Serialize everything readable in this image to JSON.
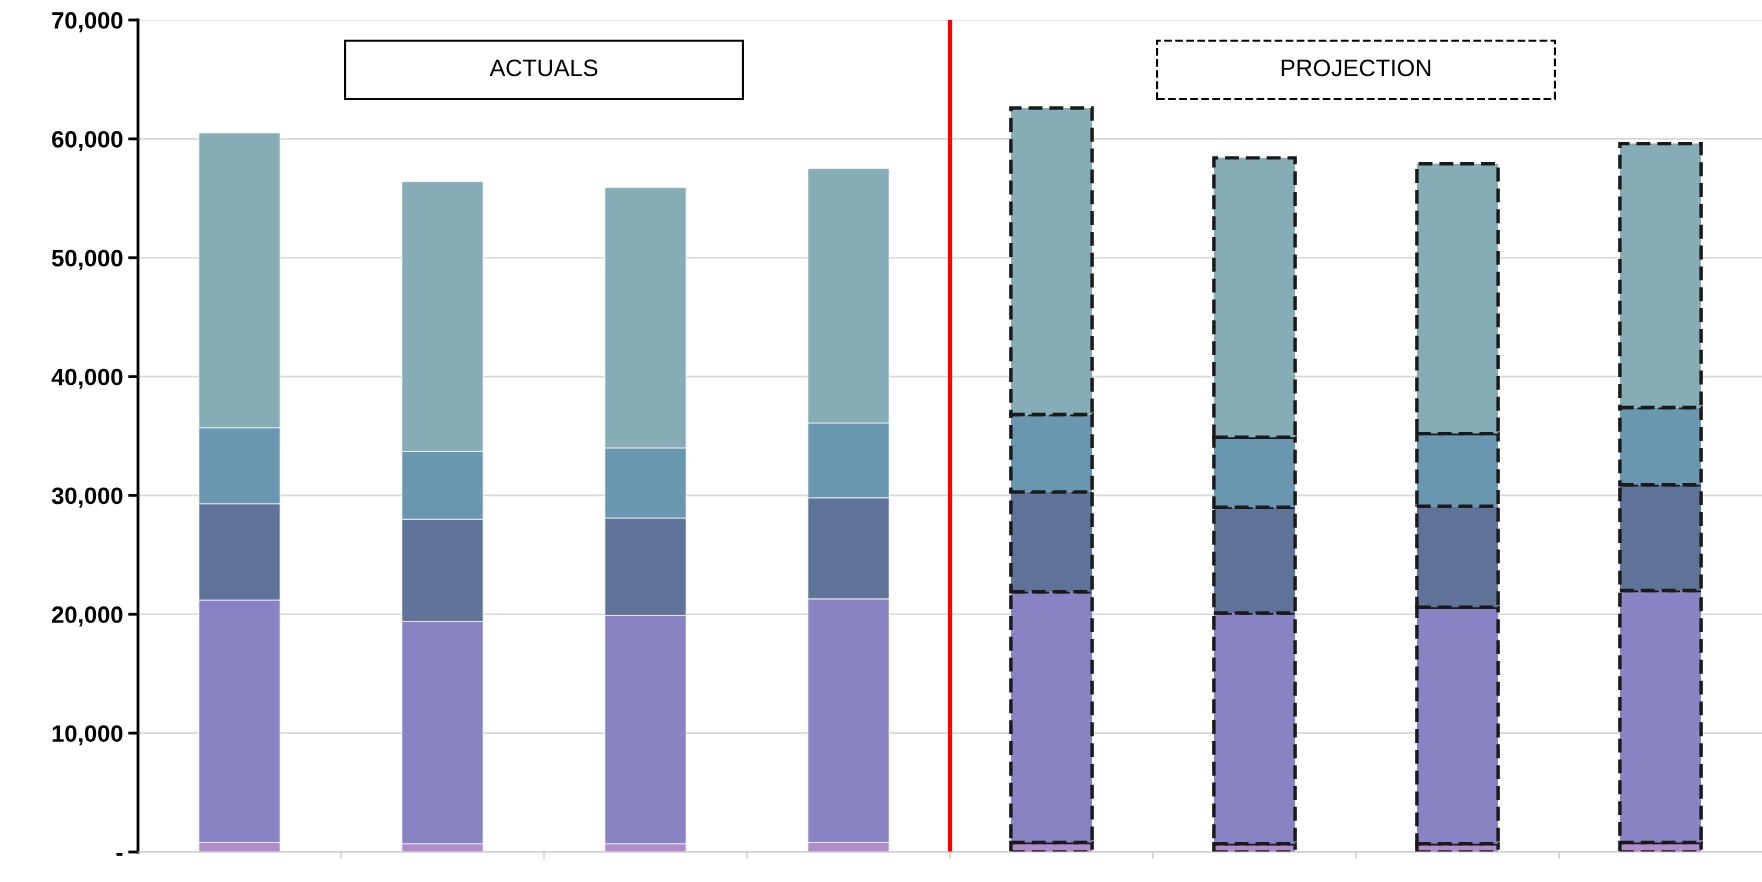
{
  "chart_data": {
    "type": "bar",
    "stacked": true,
    "categories": [
      null,
      null,
      null,
      null,
      null,
      null,
      null,
      null
    ],
    "series": [
      {
        "color": "#b08ccc",
        "values": [
          800,
          700,
          700,
          800,
          800,
          700,
          700,
          800
        ],
        "line_style": [
          null,
          null,
          null,
          null,
          "dashed",
          "dashed",
          "dashed",
          "dashed"
        ]
      },
      {
        "color": "#8884c4",
        "values": [
          20400,
          18700,
          19200,
          20500,
          21100,
          19400,
          19900,
          21200
        ],
        "line_style": [
          null,
          null,
          null,
          null,
          "dashed",
          "dashed",
          "dashed",
          "dashed"
        ]
      },
      {
        "color": "#5f7398",
        "values": [
          8100,
          8600,
          8200,
          8500,
          8400,
          8900,
          8500,
          8900
        ],
        "line_style": [
          null,
          null,
          null,
          null,
          "dashed",
          "dashed",
          "dashed",
          "dashed"
        ]
      },
      {
        "color": "#6a97b0",
        "values": [
          6400,
          5700,
          5900,
          6300,
          6500,
          5900,
          6100,
          6500
        ],
        "line_style": [
          null,
          null,
          null,
          null,
          "dashed",
          "dashed",
          "dashed",
          "dashed"
        ]
      },
      {
        "color": "#86acb5",
        "values": [
          24800,
          22700,
          21900,
          21400,
          25800,
          23500,
          22700,
          22200
        ],
        "line_style": [
          null,
          null,
          null,
          null,
          "dashed",
          "dashed",
          "dashed",
          "dashed"
        ]
      }
    ],
    "ylim": [
      0,
      70000
    ],
    "yticks": [
      {
        "value": 0,
        "label": "-"
      },
      {
        "value": 10000,
        "label": "10,000"
      },
      {
        "value": 20000,
        "label": "20,000"
      },
      {
        "value": 30000,
        "label": "30,000"
      },
      {
        "value": 40000,
        "label": "40,000"
      },
      {
        "value": 50000,
        "label": "50,000"
      },
      {
        "value": 60000,
        "label": "60,000"
      },
      {
        "value": 70000,
        "label": "70,000"
      }
    ],
    "grid": "y",
    "tick_labels": "y",
    "annotations": [
      "ACTUALS",
      "PROJECTION"
    ]
  }
}
